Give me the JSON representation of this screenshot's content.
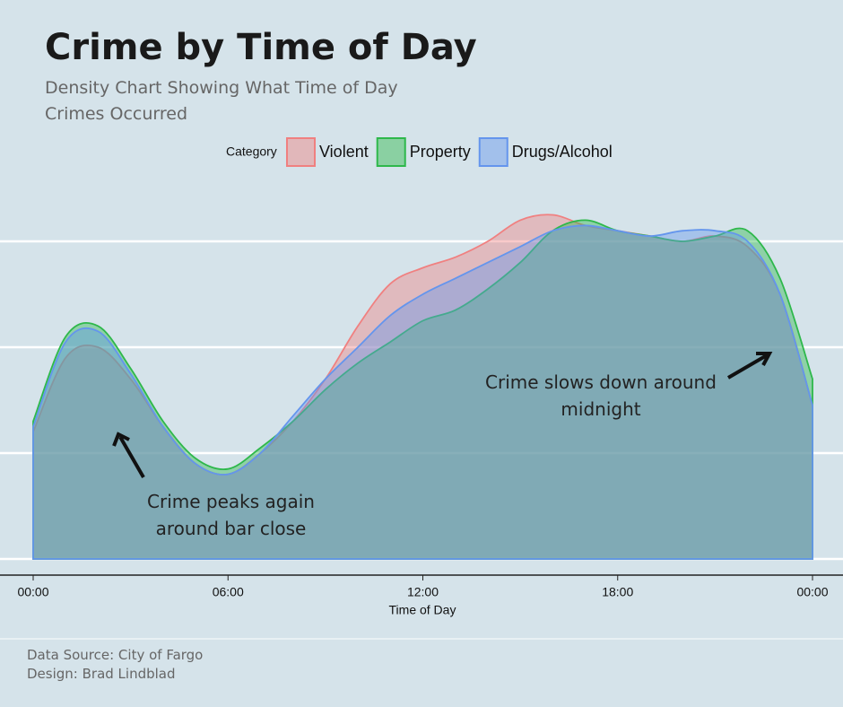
{
  "chart_data": {
    "type": "area",
    "title": "Crime by Time of Day",
    "subtitle": "Density Chart Showing What Time of Day Crimes Occurred",
    "legend_title": "Category",
    "x_label": "Time of Day",
    "x": [
      0,
      1,
      2,
      3,
      4,
      5,
      6,
      7,
      8,
      9,
      10,
      11,
      12,
      13,
      14,
      15,
      16,
      17,
      18,
      19,
      20,
      21,
      22,
      23,
      24
    ],
    "series": [
      {
        "name": "Violent",
        "color": "#f08080",
        "values": [
          0.024,
          0.038,
          0.04,
          0.034,
          0.025,
          0.018,
          0.016,
          0.02,
          0.026,
          0.034,
          0.044,
          0.052,
          0.055,
          0.057,
          0.06,
          0.064,
          0.065,
          0.063,
          0.062,
          0.061,
          0.06,
          0.061,
          0.059,
          0.05,
          0.029
        ]
      },
      {
        "name": "Property",
        "color": "#2eb84b",
        "values": [
          0.026,
          0.042,
          0.044,
          0.036,
          0.026,
          0.019,
          0.017,
          0.021,
          0.026,
          0.032,
          0.037,
          0.041,
          0.045,
          0.047,
          0.051,
          0.056,
          0.062,
          0.064,
          0.062,
          0.061,
          0.06,
          0.061,
          0.062,
          0.053,
          0.034
        ]
      },
      {
        "name": "Drugs/Alcohol",
        "color": "#6495ed",
        "values": [
          0.025,
          0.041,
          0.043,
          0.035,
          0.025,
          0.018,
          0.016,
          0.02,
          0.027,
          0.034,
          0.04,
          0.046,
          0.05,
          0.053,
          0.056,
          0.059,
          0.062,
          0.063,
          0.062,
          0.061,
          0.062,
          0.062,
          0.06,
          0.05,
          0.029
        ]
      }
    ],
    "xlim": [
      0,
      24
    ],
    "xticks": [
      {
        "value": 0,
        "label": "00:00"
      },
      {
        "value": 6,
        "label": "06:00"
      },
      {
        "value": 12,
        "label": "12:00"
      },
      {
        "value": 18,
        "label": "18:00"
      },
      {
        "value": 24,
        "label": "00:00"
      }
    ],
    "ylim": [
      0,
      0.07
    ],
    "yticks": [
      0,
      0.02,
      0.04,
      0.06
    ],
    "grid": true,
    "annotations": [
      "Crime peaks again around bar close",
      "Crime slows down around midnight"
    ],
    "footer": [
      "Data Source: City of Fargo",
      "Design: Brad Lindblad"
    ]
  }
}
